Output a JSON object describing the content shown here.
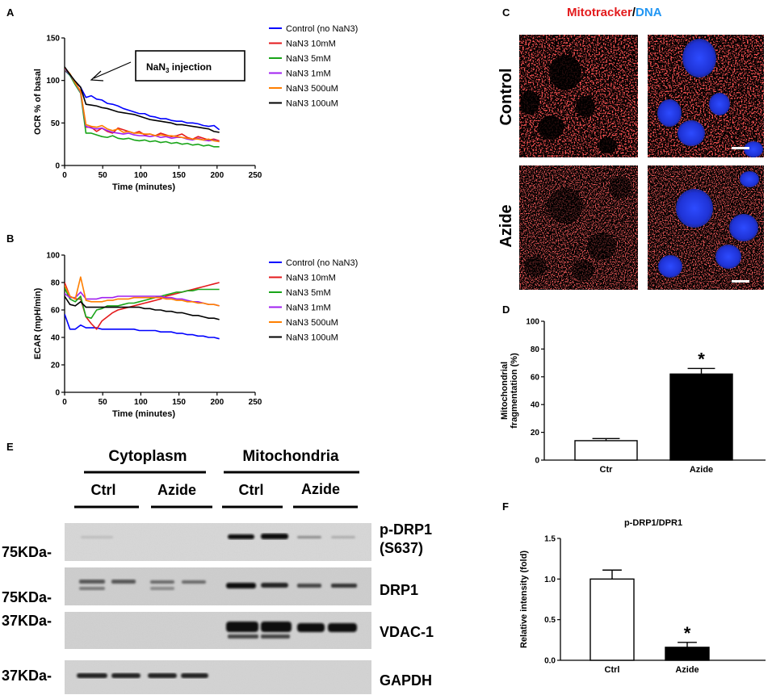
{
  "panel_labels": {
    "A": "A",
    "B": "B",
    "C": "C",
    "D": "D",
    "E": "E",
    "F": "F"
  },
  "panel_a": {
    "annotation_prefix": "NaN",
    "annotation_sub": "3",
    "annotation_suffix": " injection"
  },
  "panel_c": {
    "title_part1": "Mitotracker",
    "title_sep": "/",
    "title_part2": "DNA",
    "row_labels": [
      "Control",
      "Azide"
    ],
    "colors": {
      "mitotracker": "#e31a1c",
      "dna": "#2196f3"
    }
  },
  "panel_e": {
    "groups": [
      "Cytoplasm",
      "Mitochondria"
    ],
    "lanes": [
      "Ctrl",
      "Azide",
      "Ctrl",
      "Azide"
    ],
    "blots": [
      {
        "label_line1": "p-DRP1",
        "label_line2": "(S637)",
        "marker": "75KDa-"
      },
      {
        "label_line1": "DRP1",
        "label_line2": "",
        "marker": "75KDa-"
      },
      {
        "label_line1": "VDAC-1",
        "label_line2": "",
        "marker": "37KDa-"
      },
      {
        "label_line1": "GAPDH",
        "label_line2": "",
        "marker": "37KDa-"
      }
    ]
  },
  "chart_data": [
    {
      "id": "A",
      "type": "line",
      "title": "",
      "xlabel": "Time (minutes)",
      "ylabel": "OCR % of basal",
      "xlim": [
        0,
        250
      ],
      "ylim": [
        0,
        150
      ],
      "xticks": [
        0,
        50,
        100,
        150,
        200,
        250
      ],
      "yticks": [
        0,
        50,
        100,
        150
      ],
      "legend_position": "right",
      "grid": false,
      "x": [
        0,
        7,
        14,
        21,
        28,
        35,
        42,
        49,
        56,
        63,
        70,
        77,
        84,
        91,
        98,
        105,
        112,
        119,
        126,
        133,
        140,
        147,
        154,
        161,
        168,
        175,
        182,
        189,
        196,
        203
      ],
      "series": [
        {
          "name": "Control (no NaN3)",
          "color": "#0000ff",
          "values": [
            112,
            106,
            98,
            92,
            80,
            82,
            78,
            77,
            73,
            72,
            70,
            67,
            65,
            63,
            61,
            61,
            58,
            57,
            55,
            55,
            53,
            52,
            52,
            50,
            50,
            49,
            47,
            46,
            47,
            42
          ]
        },
        {
          "name": "NaN3 10mM",
          "color": "#e41a1c",
          "values": [
            112,
            107,
            96,
            88,
            45,
            45,
            40,
            44,
            40,
            38,
            44,
            42,
            40,
            38,
            40,
            36,
            37,
            35,
            38,
            36,
            34,
            35,
            37,
            33,
            31,
            34,
            32,
            30,
            31,
            29
          ]
        },
        {
          "name": "NaN3 5mM",
          "color": "#19a519",
          "values": [
            113,
            106,
            95,
            85,
            38,
            38,
            36,
            34,
            33,
            35,
            32,
            31,
            32,
            30,
            29,
            30,
            28,
            29,
            27,
            28,
            26,
            27,
            25,
            26,
            24,
            25,
            23,
            24,
            22,
            22
          ]
        },
        {
          "name": "NaN3 1mM",
          "color": "#a020f0",
          "values": [
            114,
            107,
            97,
            86,
            46,
            44,
            43,
            44,
            41,
            39,
            38,
            37,
            38,
            36,
            35,
            35,
            34,
            35,
            33,
            34,
            32,
            33,
            33,
            31,
            30,
            32,
            30,
            29,
            30,
            28
          ]
        },
        {
          "name": "NaN3 500uM",
          "color": "#ff7f00",
          "values": [
            115,
            108,
            97,
            87,
            48,
            46,
            45,
            47,
            43,
            41,
            43,
            39,
            40,
            38,
            38,
            37,
            37,
            35,
            36,
            35,
            35,
            34,
            33,
            32,
            31,
            31,
            30,
            31,
            29,
            28
          ]
        },
        {
          "name": "NaN3 100uM",
          "color": "#000000",
          "values": [
            116,
            107,
            99,
            92,
            72,
            71,
            70,
            68,
            67,
            65,
            63,
            62,
            61,
            60,
            58,
            56,
            54,
            53,
            52,
            51,
            50,
            48,
            48,
            47,
            46,
            45,
            44,
            43,
            40,
            39
          ]
        }
      ]
    },
    {
      "id": "B",
      "type": "line",
      "title": "",
      "xlabel": "Time (minutes)",
      "ylabel": "ECAR (mpH/min)",
      "xlim": [
        0,
        250
      ],
      "ylim": [
        0,
        100
      ],
      "xticks": [
        0,
        50,
        100,
        150,
        200,
        250
      ],
      "yticks": [
        0,
        20,
        40,
        60,
        80,
        100
      ],
      "legend_position": "right",
      "grid": false,
      "x": [
        0,
        7,
        14,
        21,
        28,
        35,
        42,
        49,
        56,
        63,
        70,
        77,
        84,
        91,
        98,
        105,
        112,
        119,
        126,
        133,
        140,
        147,
        154,
        161,
        168,
        175,
        182,
        189,
        196,
        203
      ],
      "series": [
        {
          "name": "Control (no NaN3)",
          "color": "#0000ff",
          "values": [
            57,
            46,
            46,
            49,
            47,
            47,
            47,
            46,
            46,
            46,
            46,
            46,
            46,
            46,
            45,
            45,
            45,
            45,
            44,
            44,
            44,
            43,
            43,
            42,
            42,
            41,
            41,
            40,
            40,
            39
          ]
        },
        {
          "name": "NaN3 10mM",
          "color": "#e41a1c",
          "values": [
            80,
            70,
            68,
            68,
            55,
            50,
            46,
            52,
            55,
            58,
            60,
            61,
            62,
            63,
            64,
            65,
            66,
            67,
            68,
            70,
            71,
            72,
            73,
            74,
            75,
            76,
            77,
            78,
            79,
            80
          ]
        },
        {
          "name": "NaN3 5mM",
          "color": "#19a519",
          "values": [
            76,
            68,
            66,
            70,
            55,
            54,
            60,
            61,
            63,
            63,
            63,
            64,
            65,
            65,
            66,
            67,
            68,
            69,
            70,
            71,
            72,
            73,
            73,
            74,
            74,
            75,
            75,
            75,
            75,
            75
          ]
        },
        {
          "name": "NaN3 1mM",
          "color": "#a020f0",
          "values": [
            72,
            69,
            69,
            73,
            68,
            68,
            68,
            69,
            69,
            69,
            70,
            70,
            70,
            70,
            70,
            70,
            70,
            70,
            70,
            69,
            69,
            68,
            68,
            67,
            66,
            66,
            65,
            64,
            64,
            63
          ]
        },
        {
          "name": "NaN3 500uM",
          "color": "#ff7f00",
          "values": [
            78,
            70,
            68,
            84,
            67,
            66,
            66,
            66,
            67,
            67,
            68,
            68,
            68,
            69,
            69,
            69,
            69,
            69,
            69,
            68,
            68,
            67,
            67,
            66,
            66,
            65,
            65,
            64,
            64,
            63
          ]
        },
        {
          "name": "NaN3 100uM",
          "color": "#000000",
          "values": [
            70,
            64,
            63,
            66,
            62,
            62,
            62,
            62,
            62,
            62,
            62,
            62,
            62,
            62,
            62,
            61,
            61,
            60,
            60,
            59,
            59,
            58,
            58,
            57,
            56,
            56,
            55,
            54,
            54,
            53
          ]
        }
      ]
    },
    {
      "id": "D",
      "type": "bar",
      "title": "",
      "xlabel": "",
      "ylabel": "Mitochondrial fragmentation (%)",
      "ylim": [
        0,
        100
      ],
      "yticks": [
        0,
        20,
        40,
        60,
        80,
        100
      ],
      "categories": [
        "Ctr",
        "Azide"
      ],
      "values": [
        14,
        62
      ],
      "errors": [
        1.5,
        4
      ],
      "fills": [
        "#ffffff",
        "#000000"
      ],
      "significance": [
        "",
        "*"
      ],
      "grid": false
    },
    {
      "id": "F",
      "type": "bar",
      "title": "p-DRP1/DPR1",
      "xlabel": "",
      "ylabel": "Relative intensity (fold)",
      "ylim": [
        0,
        1.5
      ],
      "yticks": [
        0.0,
        0.5,
        1.0,
        1.5
      ],
      "ytick_labels": [
        "0.0",
        "0.5",
        "1.0",
        "1.5"
      ],
      "categories": [
        "Ctrl",
        "Azide"
      ],
      "values": [
        1.0,
        0.16
      ],
      "errors": [
        0.11,
        0.06
      ],
      "fills": [
        "#ffffff",
        "#000000"
      ],
      "significance": [
        "",
        "*"
      ],
      "grid": false
    }
  ]
}
